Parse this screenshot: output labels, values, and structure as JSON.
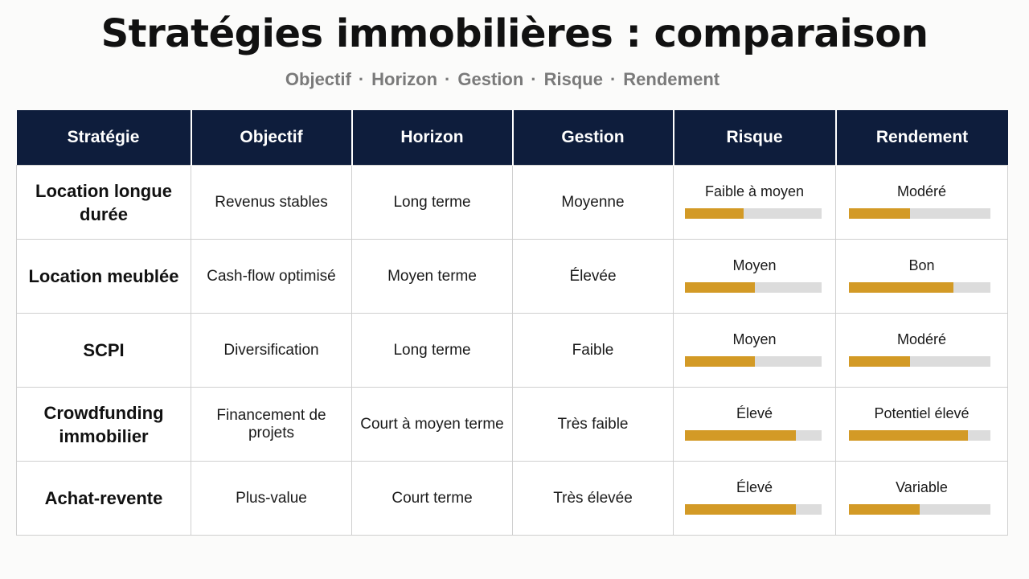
{
  "title": "Stratégies immobilières : comparaison",
  "subtitle_items": [
    "Objectif",
    "Horizon",
    "Gestion",
    "Risque",
    "Rendement"
  ],
  "subtitle_separator": "·",
  "headers": [
    "Stratégie",
    "Objectif",
    "Horizon",
    "Gestion",
    "Risque",
    "Rendement"
  ],
  "colors": {
    "header_bg": "#0e1d3c",
    "bar_fill": "#d39a26",
    "bar_track": "#dcdcdc"
  },
  "rows": [
    {
      "strategie": "Location longue durée",
      "objectif": "Revenus stables",
      "horizon": "Long terme",
      "gestion": "Moyenne",
      "risque": {
        "label": "Faible à moyen",
        "level": 0.43
      },
      "rendement": {
        "label": "Modéré",
        "level": 0.43
      }
    },
    {
      "strategie": "Location meublée",
      "objectif": "Cash-flow optimisé",
      "horizon": "Moyen terme",
      "gestion": "Élevée",
      "risque": {
        "label": "Moyen",
        "level": 0.51
      },
      "rendement": {
        "label": "Bon",
        "level": 0.74
      }
    },
    {
      "strategie": "SCPI",
      "objectif": "Diversification",
      "horizon": "Long terme",
      "gestion": "Faible",
      "risque": {
        "label": "Moyen",
        "level": 0.51
      },
      "rendement": {
        "label": "Modéré",
        "level": 0.43
      }
    },
    {
      "strategie": "Crowdfunding immobilier",
      "objectif": "Financement de projets",
      "horizon": "Court à moyen terme",
      "gestion": "Très faible",
      "risque": {
        "label": "Élevé",
        "level": 0.81
      },
      "rendement": {
        "label": "Potentiel élevé",
        "level": 0.84
      }
    },
    {
      "strategie": "Achat-revente",
      "objectif": "Plus-value",
      "horizon": "Court terme",
      "gestion": "Très élevée",
      "risque": {
        "label": "Élevé",
        "level": 0.81
      },
      "rendement": {
        "label": "Variable",
        "level": 0.5
      }
    }
  ]
}
